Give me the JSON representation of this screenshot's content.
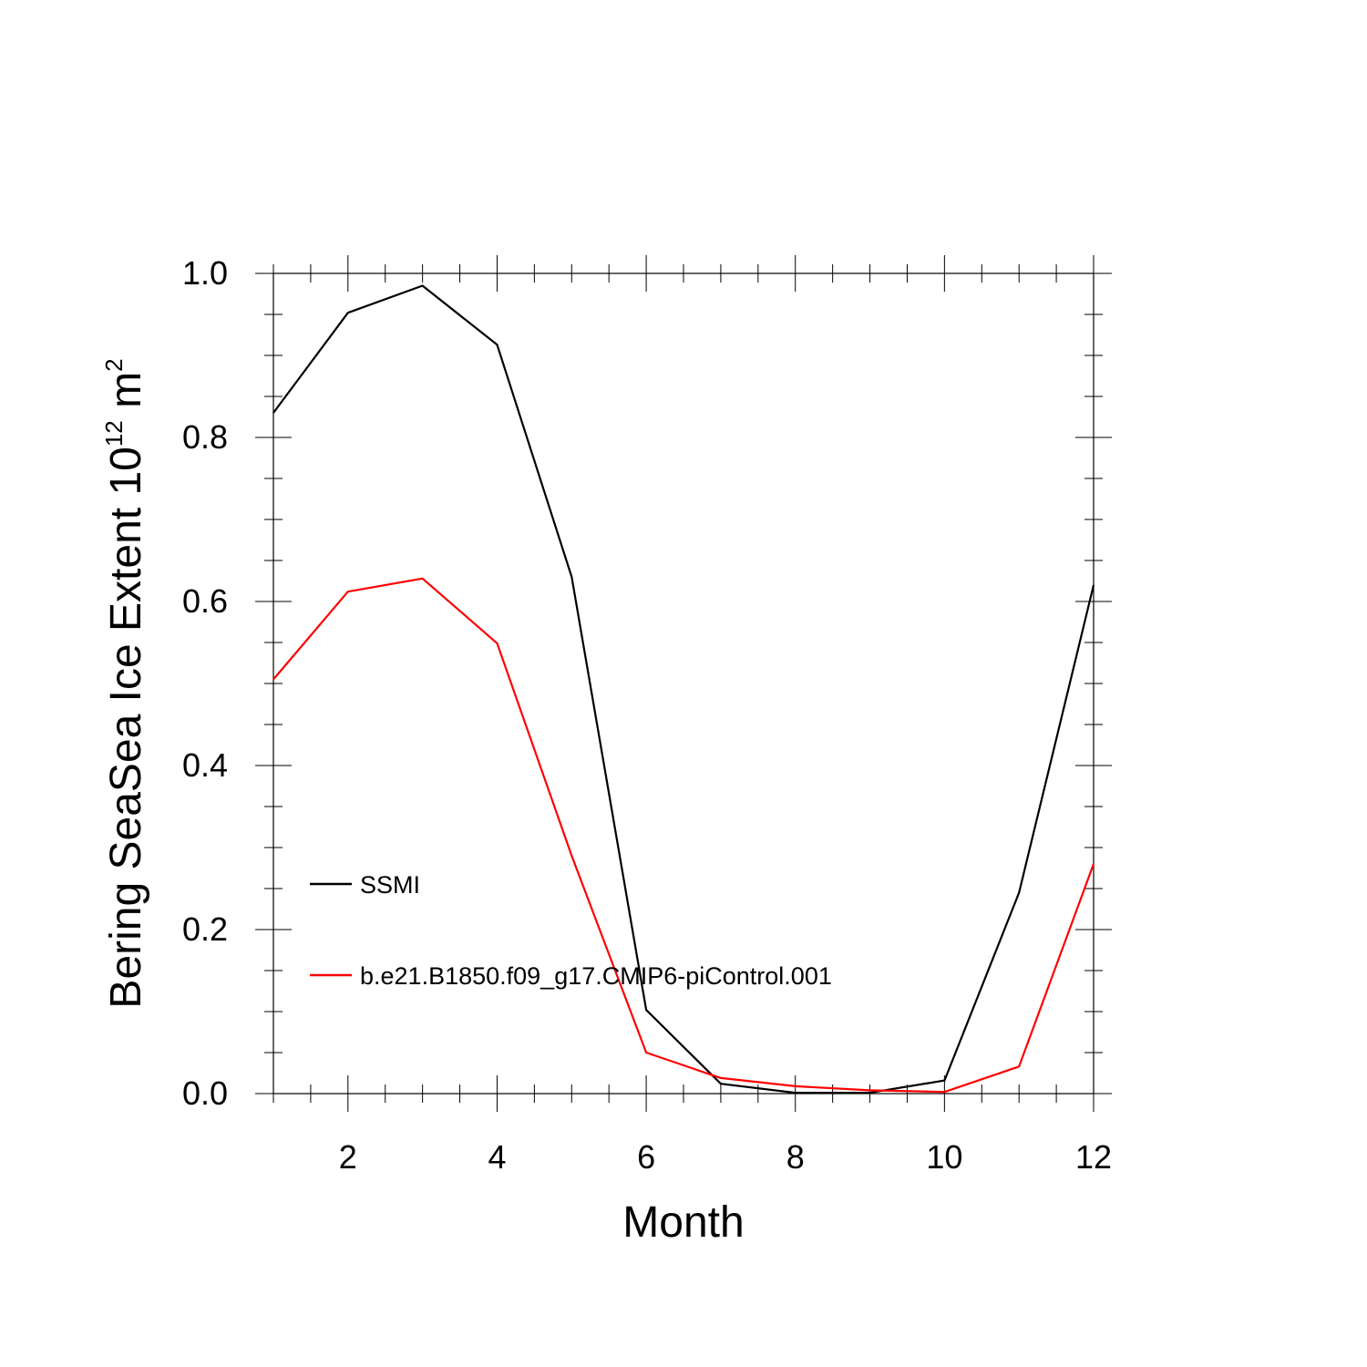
{
  "chart_data": {
    "type": "line",
    "title": "",
    "xlabel": "Month",
    "ylabel": {
      "prefix": "Bering SeaSea Ice Extent 10",
      "exponent": "12",
      "unit": " m",
      "unit_exponent": "2"
    },
    "xlim": [
      1,
      12
    ],
    "ylim": [
      0.0,
      1.0
    ],
    "x_ticks": [
      2,
      4,
      6,
      8,
      10,
      12
    ],
    "x_tick_labels": [
      "2",
      "4",
      "6",
      "8",
      "10",
      "12"
    ],
    "y_ticks": [
      0.0,
      0.2,
      0.4,
      0.6,
      0.8,
      1.0
    ],
    "y_tick_labels": [
      "0.0",
      "0.2",
      "0.4",
      "0.6",
      "0.8",
      "1.0"
    ],
    "x": [
      1,
      2,
      3,
      4,
      5,
      6,
      7,
      8,
      9,
      10,
      11,
      12
    ],
    "series": [
      {
        "name": "SSMI",
        "color": "#000000",
        "values": [
          0.83,
          0.952,
          0.985,
          0.913,
          0.63,
          0.102,
          0.012,
          0.001,
          0.001,
          0.016,
          0.245,
          0.62
        ]
      },
      {
        "name": "b.e21.B1850.f09_g17.CMIP6-piControl.001",
        "color": "#ff0000",
        "values": [
          0.505,
          0.612,
          0.628,
          0.549,
          0.29,
          0.05,
          0.019,
          0.009,
          0.004,
          0.002,
          0.033,
          0.28
        ]
      }
    ],
    "grid": false,
    "legend_position": "lower-left inside"
  }
}
